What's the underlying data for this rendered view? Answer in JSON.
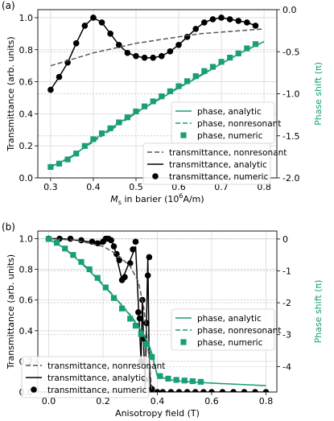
{
  "chart_data": [
    {
      "type": "line",
      "panel_label": "(a)",
      "xlabel_main": "M",
      "xlabel_sub": "s",
      "xlabel_rest": " in barier (10",
      "xlabel_sup": "6",
      "xlabel_end": "A/m)",
      "ylabel_left": "Transmittance (arb. units)",
      "ylabel_right": "Phase shift (π)",
      "xlim": [
        0.27,
        0.83
      ],
      "ylim_left": [
        0,
        1.05
      ],
      "ylim_right": [
        -2.0,
        0.0
      ],
      "x_ticks": [
        "0.3",
        "0.4",
        "0.5",
        "0.6",
        "0.7",
        "0.8"
      ],
      "y_ticks_left": [
        "0.0",
        "0.2",
        "0.4",
        "0.6",
        "0.8",
        "1.0"
      ],
      "y_ticks_right": [
        "0.0",
        "-0.5",
        "-1.0",
        "-1.5",
        "-2.0"
      ],
      "legend_upper": [
        "phase, analytic",
        "phase, nonresonant",
        "phase, numeric"
      ],
      "legend_lower": [
        "transmittance, nonresonant",
        "transmittance, analytic",
        "transmittance, numeric"
      ],
      "colors": {
        "phase": "#1a9e78",
        "transmittance": "#000000",
        "nonresonant": "#555555"
      },
      "series": [
        {
          "name": "transmittance, analytic",
          "axis": "left",
          "style": "solid",
          "x": [
            0.3,
            0.32,
            0.34,
            0.36,
            0.38,
            0.4,
            0.42,
            0.44,
            0.46,
            0.48,
            0.5,
            0.52,
            0.54,
            0.56,
            0.58,
            0.6,
            0.62,
            0.64,
            0.66,
            0.68,
            0.7,
            0.72,
            0.74,
            0.76,
            0.78
          ],
          "y": [
            0.55,
            0.63,
            0.72,
            0.84,
            0.95,
            1.0,
            0.97,
            0.9,
            0.83,
            0.78,
            0.76,
            0.75,
            0.75,
            0.76,
            0.79,
            0.83,
            0.88,
            0.93,
            0.97,
            0.99,
            1.0,
            0.99,
            0.98,
            0.97,
            0.95
          ]
        },
        {
          "name": "transmittance, numeric",
          "axis": "left",
          "style": "dots",
          "x": [
            0.3,
            0.32,
            0.34,
            0.36,
            0.38,
            0.4,
            0.42,
            0.44,
            0.46,
            0.48,
            0.5,
            0.52,
            0.54,
            0.56,
            0.58,
            0.6,
            0.62,
            0.64,
            0.66,
            0.68,
            0.7,
            0.72,
            0.74,
            0.76,
            0.78
          ],
          "y": [
            0.55,
            0.63,
            0.72,
            0.84,
            0.95,
            1.0,
            0.97,
            0.9,
            0.83,
            0.78,
            0.76,
            0.75,
            0.75,
            0.76,
            0.79,
            0.83,
            0.88,
            0.93,
            0.97,
            0.99,
            1.0,
            0.99,
            0.98,
            0.97,
            0.95
          ]
        },
        {
          "name": "transmittance, nonresonant",
          "axis": "left",
          "style": "dashed",
          "x": [
            0.3,
            0.35,
            0.4,
            0.45,
            0.5,
            0.55,
            0.6,
            0.65,
            0.7,
            0.75,
            0.8
          ],
          "y": [
            0.7,
            0.74,
            0.78,
            0.81,
            0.84,
            0.86,
            0.88,
            0.9,
            0.91,
            0.92,
            0.93
          ]
        },
        {
          "name": "phase, analytic",
          "axis": "right",
          "style": "solid",
          "x": [
            0.3,
            0.35,
            0.4,
            0.45,
            0.5,
            0.55,
            0.6,
            0.65,
            0.7,
            0.75,
            0.8
          ],
          "y": [
            -1.87,
            -1.75,
            -1.55,
            -1.38,
            -1.22,
            -1.08,
            -0.93,
            -0.79,
            -0.64,
            -0.5,
            -0.38
          ]
        },
        {
          "name": "phase, nonresonant",
          "axis": "right",
          "style": "dashed",
          "x": [
            0.3,
            0.35,
            0.4,
            0.45,
            0.5,
            0.55,
            0.6,
            0.65,
            0.7,
            0.75,
            0.8
          ],
          "y": [
            -1.87,
            -1.74,
            -1.57,
            -1.4,
            -1.23,
            -1.07,
            -0.92,
            -0.78,
            -0.64,
            -0.5,
            -0.38
          ]
        },
        {
          "name": "phase, numeric",
          "axis": "right",
          "style": "squares",
          "x": [
            0.3,
            0.32,
            0.34,
            0.36,
            0.38,
            0.4,
            0.42,
            0.44,
            0.46,
            0.48,
            0.5,
            0.52,
            0.54,
            0.56,
            0.58,
            0.6,
            0.62,
            0.64,
            0.66,
            0.68,
            0.7,
            0.72,
            0.74,
            0.76,
            0.78
          ],
          "y": [
            -1.87,
            -1.83,
            -1.78,
            -1.71,
            -1.62,
            -1.54,
            -1.47,
            -1.41,
            -1.34,
            -1.28,
            -1.21,
            -1.15,
            -1.09,
            -1.03,
            -0.97,
            -0.91,
            -0.85,
            -0.79,
            -0.73,
            -0.68,
            -0.62,
            -0.57,
            -0.52,
            -0.46,
            -0.41
          ]
        }
      ]
    },
    {
      "type": "line",
      "panel_label": "(b)",
      "xlabel": "Anisotropy field (T)",
      "ylabel_left": "Transmittance (arb. units)",
      "ylabel_right": "Phase shift (π)",
      "xlim": [
        -0.04,
        0.84
      ],
      "ylim_left": [
        0,
        1.05
      ],
      "ylim_right": [
        -4.8,
        0.25
      ],
      "x_ticks": [
        "0.0",
        "0.2",
        "0.4",
        "0.6",
        "0.8"
      ],
      "y_ticks_left": [
        "0.0",
        "0.2",
        "0.4",
        "0.6",
        "0.8",
        "1.0"
      ],
      "y_ticks_right": [
        "0",
        "-1",
        "-2",
        "-3",
        "-4"
      ],
      "legend_upper": [
        "phase, analytic",
        "phase, nonresonant",
        "phase, numeric"
      ],
      "legend_lower": [
        "transmittance, nonresonant",
        "transmittance, analytic",
        "transmittance, numeric"
      ],
      "series": [
        {
          "name": "transmittance, analytic",
          "axis": "left",
          "style": "solid",
          "x": [
            0.0,
            0.05,
            0.1,
            0.15,
            0.18,
            0.2,
            0.22,
            0.24,
            0.25,
            0.27,
            0.3,
            0.32,
            0.34,
            0.345,
            0.35,
            0.355,
            0.36,
            0.365,
            0.37,
            0.375,
            0.38,
            0.4,
            0.5,
            0.6,
            0.7,
            0.8
          ],
          "y": [
            1.0,
            1.0,
            0.99,
            0.98,
            0.96,
            0.97,
            1.0,
            0.96,
            0.88,
            0.73,
            0.86,
            0.95,
            0.2,
            0.62,
            0.3,
            0.0,
            0.45,
            0.88,
            0.2,
            0.0,
            0.0,
            0.0,
            0.0,
            0.0,
            0.0,
            0.0
          ]
        },
        {
          "name": "transmittance, numeric",
          "axis": "left",
          "style": "dots",
          "x": [
            0.0,
            0.04,
            0.08,
            0.12,
            0.16,
            0.18,
            0.2,
            0.21,
            0.22,
            0.23,
            0.24,
            0.25,
            0.26,
            0.27,
            0.28,
            0.3,
            0.31,
            0.32,
            0.33,
            0.335,
            0.34,
            0.345,
            0.35,
            0.355,
            0.36,
            0.365,
            0.37,
            0.38,
            0.4,
            0.42,
            0.45,
            0.48,
            0.51,
            0.54,
            0.57,
            0.6,
            0.64,
            0.68,
            0.72,
            0.76,
            0.8
          ],
          "y": [
            1.0,
            1.0,
            1.0,
            0.99,
            0.98,
            0.97,
            0.98,
            1.0,
            1.0,
            0.99,
            0.95,
            0.9,
            0.86,
            0.73,
            0.75,
            0.84,
            0.93,
            0.98,
            0.52,
            0.48,
            0.2,
            0.6,
            0.35,
            0.08,
            0.45,
            0.76,
            0.88,
            0.02,
            0.0,
            0.0,
            0.0,
            0.0,
            0.0,
            0.0,
            0.0,
            0.0,
            0.0,
            0.0,
            0.0,
            0.0,
            0.0
          ]
        },
        {
          "name": "transmittance, nonresonant",
          "axis": "left",
          "style": "dashed",
          "x": [
            0.0,
            0.1,
            0.2,
            0.25,
            0.3,
            0.33,
            0.35,
            0.36,
            0.37,
            0.38
          ],
          "y": [
            1.0,
            0.99,
            0.95,
            0.9,
            0.82,
            0.72,
            0.55,
            0.4,
            0.2,
            0.0
          ]
        },
        {
          "name": "phase, analytic",
          "axis": "right",
          "style": "solid",
          "x": [
            0.0,
            0.05,
            0.1,
            0.15,
            0.2,
            0.25,
            0.3,
            0.33,
            0.35,
            0.36,
            0.37,
            0.38,
            0.39,
            0.4,
            0.45,
            0.5,
            0.6,
            0.7,
            0.8
          ],
          "y": [
            0.0,
            -0.25,
            -0.6,
            -1.0,
            -1.45,
            -1.9,
            -2.4,
            -2.75,
            -3.0,
            -3.15,
            -3.35,
            -3.6,
            -3.95,
            -4.3,
            -4.42,
            -4.47,
            -4.52,
            -4.56,
            -4.6
          ]
        },
        {
          "name": "phase, nonresonant",
          "axis": "right",
          "style": "dashed",
          "x": [
            0.0,
            0.05,
            0.1,
            0.15,
            0.2,
            0.25,
            0.3,
            0.33,
            0.35,
            0.36,
            0.37,
            0.38
          ],
          "y": [
            0.0,
            -0.24,
            -0.58,
            -0.97,
            -1.42,
            -1.88,
            -2.38,
            -2.72,
            -3.0,
            -3.2,
            -3.45,
            -3.8
          ]
        },
        {
          "name": "phase, numeric",
          "axis": "right",
          "style": "squares",
          "x": [
            0.0,
            0.03,
            0.06,
            0.09,
            0.12,
            0.15,
            0.18,
            0.21,
            0.24,
            0.27,
            0.3,
            0.32,
            0.34,
            0.36,
            0.38,
            0.41,
            0.44,
            0.47,
            0.5,
            0.53,
            0.56
          ],
          "y": [
            0.0,
            -0.12,
            -0.3,
            -0.5,
            -0.72,
            -0.95,
            -1.22,
            -1.52,
            -1.85,
            -2.18,
            -2.5,
            -2.72,
            -2.98,
            -3.3,
            -3.7,
            -4.3,
            -4.38,
            -4.42,
            -4.44,
            -4.46,
            -4.48
          ]
        }
      ]
    }
  ]
}
